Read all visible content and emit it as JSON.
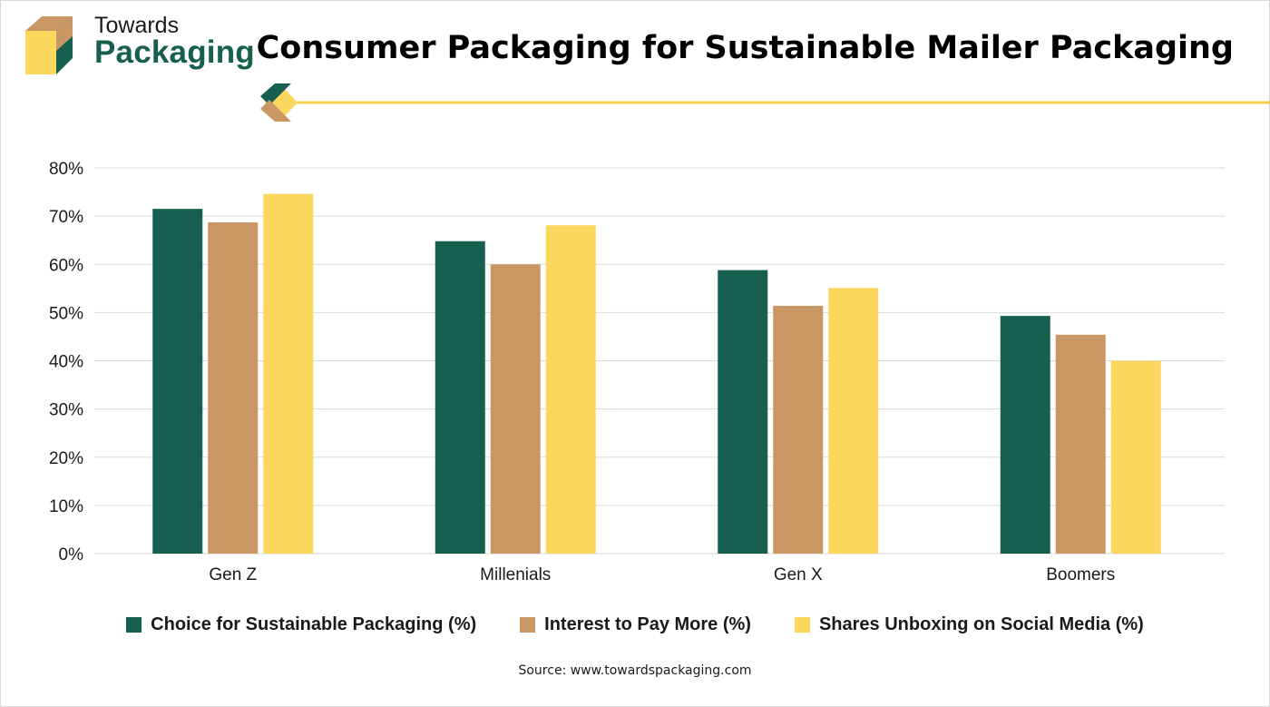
{
  "brand": {
    "line1": "Towards",
    "line2": "Packaging"
  },
  "colors": {
    "green": "#17604f",
    "tan": "#c99764",
    "yellow": "#fcd75e",
    "grid": "#d9d9d9",
    "divider": "#f2ce4f"
  },
  "chart_data": {
    "type": "bar",
    "title": "Consumer Packaging for Sustainable Mailer Packaging",
    "categories": [
      "Gen Z",
      "Millenials",
      "Gen X",
      "Boomers"
    ],
    "series": [
      {
        "name": "Choice for Sustainable Packaging (%)",
        "color": "#17604f",
        "values": [
          71.5,
          64.8,
          58.8,
          49.3
        ]
      },
      {
        "name": "Interest to Pay More (%)",
        "color": "#c99764",
        "values": [
          68.7,
          60.0,
          51.4,
          45.4
        ]
      },
      {
        "name": "Shares Unboxing on Social Media (%)",
        "color": "#fcd75e",
        "values": [
          74.6,
          68.1,
          55.1,
          40.0
        ]
      }
    ],
    "ylim": [
      0,
      80
    ],
    "yticks": [
      0,
      10,
      20,
      30,
      40,
      50,
      60,
      70,
      80
    ],
    "ytick_labels": [
      "0%",
      "10%",
      "20%",
      "30%",
      "40%",
      "50%",
      "60%",
      "70%",
      "80%"
    ],
    "xlabel": "",
    "ylabel": "",
    "grid": true,
    "legend_position": "bottom"
  },
  "source": "Source: www.towardspackaging.com"
}
